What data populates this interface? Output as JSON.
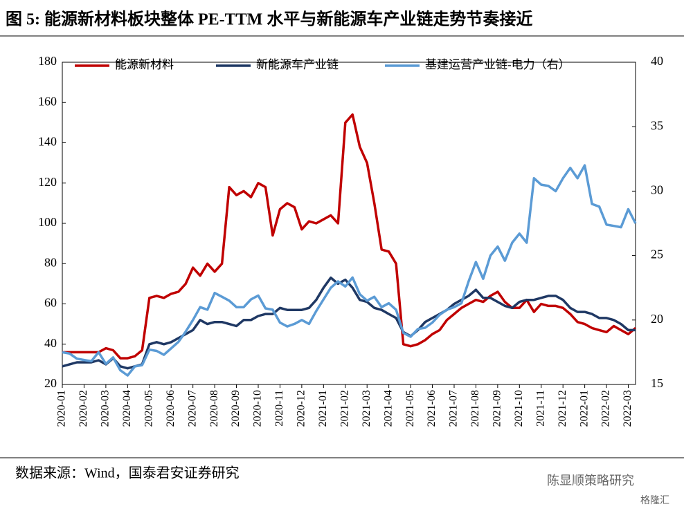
{
  "chart_data": {
    "type": "line",
    "title": "图 5: 能源新材料板块整体 PE-TTM 水平与新能源车产业链走势节奏接近",
    "source": "数据来源：Wind，国泰君安证券研究",
    "watermark": [
      "陈显顺策略研究",
      "格隆汇"
    ],
    "legend": "top",
    "categories": [
      "2020-01",
      null,
      null,
      "2020-02",
      null,
      null,
      "2020-03",
      null,
      null,
      "2020-04",
      null,
      null,
      "2020-05",
      null,
      null,
      "2020-06",
      null,
      null,
      "2020-07",
      null,
      null,
      "2020-08",
      null,
      null,
      "2020-09",
      null,
      null,
      "2020-10",
      null,
      null,
      "2020-11",
      null,
      null,
      "2020-12",
      null,
      null,
      "2021-01",
      null,
      null,
      "2021-02",
      null,
      null,
      "2021-03",
      null,
      null,
      "2021-04",
      null,
      null,
      "2021-05",
      null,
      null,
      "2021-06",
      null,
      null,
      "2021-07",
      null,
      null,
      "2021-08",
      null,
      null,
      "2021-09",
      null,
      null,
      "2021-10",
      null,
      null,
      "2021-11",
      null,
      null,
      "2021-12",
      null,
      null,
      "2022-01",
      null,
      null,
      "2022-02",
      null,
      null,
      "2022-03",
      null
    ],
    "ylim": [
      20,
      180
    ],
    "yticks": [
      20,
      40,
      60,
      80,
      100,
      120,
      140,
      160,
      180
    ],
    "y2lim": [
      15,
      40
    ],
    "y2ticks": [
      15,
      20,
      25,
      30,
      35,
      40
    ],
    "series": [
      {
        "name": "能源新材料",
        "color": "#c00000",
        "values": [
          36,
          36,
          36,
          36,
          36,
          36,
          38,
          37,
          33,
          33,
          34,
          37,
          63,
          64,
          63,
          65,
          66,
          70,
          78,
          74,
          80,
          76,
          80,
          118,
          114,
          116,
          113,
          120,
          118,
          94,
          107,
          110,
          108,
          97,
          101,
          100,
          102,
          104,
          100,
          150,
          154,
          138,
          130,
          110,
          87,
          86,
          80,
          40,
          39,
          40,
          42,
          45,
          47,
          52,
          55,
          58,
          60,
          62,
          61,
          64,
          66,
          61,
          58,
          58,
          62,
          56,
          60,
          59,
          59,
          58,
          55,
          51,
          50,
          48,
          47,
          46,
          49,
          47,
          45,
          48
        ]
      },
      {
        "name": "新能源车产业链",
        "color": "#1f3864",
        "values": [
          29,
          30,
          31,
          31,
          31,
          32,
          30,
          33,
          29,
          28,
          29,
          30,
          40,
          41,
          40,
          41,
          43,
          45,
          47,
          52,
          50,
          51,
          51,
          50,
          49,
          52,
          52,
          54,
          55,
          55,
          58,
          57,
          57,
          57,
          58,
          62,
          68,
          73,
          70,
          72,
          68,
          62,
          61,
          58,
          57,
          55,
          53,
          46,
          44,
          47,
          51,
          53,
          55,
          57,
          60,
          62,
          64,
          67,
          63,
          63,
          61,
          59,
          58,
          61,
          62,
          62,
          63,
          64,
          64,
          62,
          58,
          56,
          56,
          55,
          53,
          53,
          52,
          50,
          47,
          47
        ]
      },
      {
        "name": "基建运营产业链-电力（右）",
        "color": "#5b9bd5",
        "axis": "y2",
        "values": [
          17.5,
          17.4,
          17.0,
          16.9,
          16.8,
          17.5,
          16.6,
          17.1,
          16.1,
          15.7,
          16.4,
          16.5,
          17.7,
          17.6,
          17.3,
          17.8,
          18.3,
          19.1,
          20.0,
          21.0,
          20.8,
          22.1,
          21.8,
          21.5,
          21.0,
          21.0,
          21.6,
          21.9,
          20.9,
          20.8,
          19.8,
          19.5,
          19.7,
          20.0,
          19.7,
          20.7,
          21.6,
          22.5,
          23.0,
          22.6,
          23.3,
          22.0,
          21.5,
          21.8,
          21.0,
          21.3,
          20.8,
          19.0,
          18.7,
          19.3,
          19.4,
          19.8,
          20.4,
          20.8,
          21.0,
          21.3,
          23.0,
          24.5,
          23.2,
          25.0,
          25.7,
          24.6,
          26.0,
          26.7,
          26.0,
          31.0,
          30.5,
          30.4,
          30.0,
          31.0,
          31.8,
          31.0,
          32.0,
          29.0,
          28.8,
          27.4,
          27.3,
          27.2,
          28.6,
          27.5
        ]
      }
    ]
  }
}
